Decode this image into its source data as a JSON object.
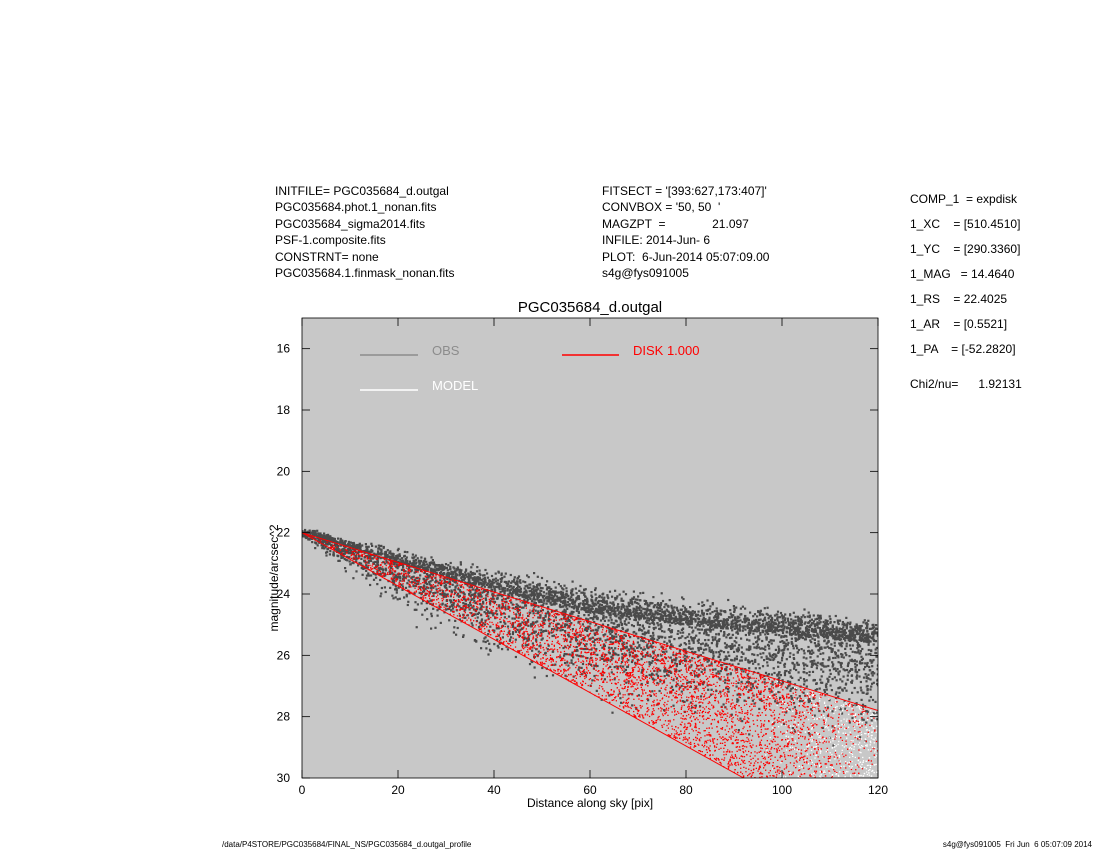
{
  "header_left": [
    "INITFILE= PGC035684_d.outgal",
    "PGC035684.phot.1_nonan.fits",
    "PGC035684_sigma2014.fits",
    "PSF-1.composite.fits",
    "CONSTRNT= none",
    "PGC035684.1.finmask_nonan.fits"
  ],
  "header_middle": [
    "FITSECT = '[393:627,173:407]'",
    "CONVBOX = '50, 50  '",
    "MAGZPT  =              21.097",
    "INFILE: 2014-Jun- 6",
    "PLOT:  6-Jun-2014 05:07:09.00",
    "s4g@fys091005"
  ],
  "params": [
    "COMP_1  = expdisk",
    "1_XC    = [510.4510]",
    "1_YC    = [290.3360]",
    "1_MAG   = 14.4640",
    "1_RS    = 22.4025",
    "1_AR    = [0.5521]",
    "1_PA    = [-52.2820]"
  ],
  "chi2": "Chi2/nu=      1.92131",
  "footer_left": "/data/P4STORE/PGC035684/FINAL_NS/PGC035684_d.outgal_profile",
  "footer_right": "s4g@fys091005  Fri Jun  6 05:07:09 2014",
  "colors": {
    "plot_bg": "#c8c8c8",
    "obs": "#4a4a4a",
    "disk": "#ff0000",
    "model": "#ffffff",
    "obs_legend": "#8c8c8c"
  },
  "chart_data": {
    "type": "scatter",
    "title": "PGC035684_d.outgal",
    "xlabel": "Distance along sky [pix]",
    "ylabel": "magnitude/arcsec^2",
    "xlim": [
      0,
      120
    ],
    "ylim": [
      30,
      15
    ],
    "y_inverted": true,
    "x_ticks": [
      0,
      20,
      40,
      60,
      80,
      100,
      120
    ],
    "y_ticks": [
      16,
      18,
      20,
      22,
      24,
      26,
      28,
      30
    ],
    "legend": [
      {
        "name": "OBS",
        "color": "#8c8c8c",
        "label_color": "#8c8c8c"
      },
      {
        "name": "DISK  1.000",
        "color": "#ff0000",
        "label_color": "#ff0000"
      },
      {
        "name": "MODEL",
        "color": "#ffffff",
        "label_color": "#ffffff"
      }
    ],
    "legend_position": "top",
    "series": [
      {
        "name": "OBS",
        "kind": "scatter_band",
        "x_range": [
          0,
          120
        ],
        "center": [
          [
            0,
            22.0
          ],
          [
            20,
            23.0
          ],
          [
            40,
            23.9
          ],
          [
            60,
            24.6
          ],
          [
            80,
            25.0
          ],
          [
            100,
            25.3
          ],
          [
            120,
            25.6
          ]
        ],
        "spread_up": [
          [
            0,
            0.2
          ],
          [
            20,
            0.6
          ],
          [
            40,
            0.9
          ],
          [
            60,
            1.0
          ],
          [
            80,
            1.0
          ],
          [
            100,
            1.0
          ],
          [
            120,
            1.0
          ]
        ],
        "spread_down": [
          [
            0,
            0.2
          ],
          [
            20,
            1.8
          ],
          [
            40,
            2.7
          ],
          [
            60,
            3.2
          ],
          [
            80,
            3.6
          ],
          [
            100,
            3.9
          ],
          [
            120,
            4.0
          ]
        ]
      },
      {
        "name": "DISK  1.000",
        "kind": "wedge",
        "apex": [
          0,
          22.0
        ],
        "upper_edge_end": [
          120,
          27.8
        ],
        "lower_edge_end": [
          92,
          30.0
        ]
      },
      {
        "name": "MODEL",
        "kind": "wedge_interior",
        "region": "x > 95"
      }
    ]
  }
}
